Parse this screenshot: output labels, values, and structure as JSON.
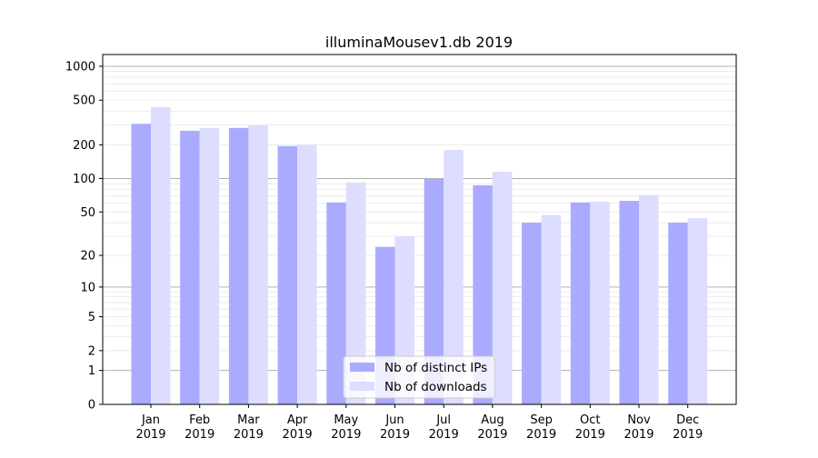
{
  "chart_data": {
    "type": "bar",
    "title": "illuminaMousev1.db 2019",
    "xlabel": "",
    "ylabel": "",
    "yscale": "log10(1+x)",
    "ylim": [
      0,
      1300
    ],
    "grid": true,
    "legend_position": "lower-center",
    "categories": [
      [
        "Jan",
        "2019"
      ],
      [
        "Feb",
        "2019"
      ],
      [
        "Mar",
        "2019"
      ],
      [
        "Apr",
        "2019"
      ],
      [
        "May",
        "2019"
      ],
      [
        "Jun",
        "2019"
      ],
      [
        "Jul",
        "2019"
      ],
      [
        "Aug",
        "2019"
      ],
      [
        "Sep",
        "2019"
      ],
      [
        "Oct",
        "2019"
      ],
      [
        "Nov",
        "2019"
      ],
      [
        "Dec",
        "2019"
      ]
    ],
    "yticks": [
      0,
      1,
      2,
      5,
      10,
      20,
      50,
      100,
      200,
      500,
      1000
    ],
    "ytick_labels": [
      "0",
      "1",
      "2",
      "5",
      "10",
      "20",
      "50",
      "100",
      "200",
      "500",
      "1000"
    ],
    "series": [
      {
        "name": "Nb of distinct IPs",
        "color": "#aaaaff",
        "values": [
          308,
          267,
          283,
          195,
          61,
          24,
          99,
          87,
          40,
          61,
          63,
          40
        ]
      },
      {
        "name": "Nb of downloads",
        "color": "#ddddff",
        "values": [
          433,
          283,
          299,
          200,
          92,
          30,
          180,
          115,
          47,
          62,
          71,
          44
        ]
      }
    ]
  }
}
